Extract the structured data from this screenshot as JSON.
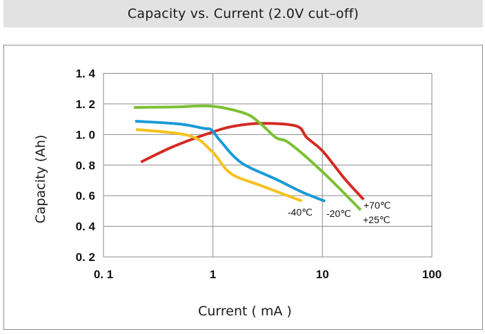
{
  "chart_data": {
    "type": "line",
    "title": "Capacity vs. Current (2.0V cut–off)",
    "xlabel": "Current ( mA )",
    "ylabel": "Capacity (Ah)",
    "xscale": "log",
    "xlim": [
      0.1,
      100
    ],
    "ylim": [
      0.2,
      1.4
    ],
    "grid": true,
    "x_ticks": [
      0.1,
      1,
      10,
      100
    ],
    "x_tick_labels": [
      "0. 1",
      "1",
      "10",
      "100"
    ],
    "y_ticks": [
      1.4,
      1.2,
      1.0,
      0.8,
      0.6,
      0.4,
      0.2
    ],
    "y_tick_labels": [
      "1. 4",
      "1. 2",
      "1. 0",
      "0. 8",
      "0. 6",
      "0. 4",
      "0. 2"
    ],
    "series": [
      {
        "name": "+70℃",
        "color": "#d42a22",
        "x": [
          0.22,
          0.43,
          0.98,
          1.57,
          2.8,
          5.8,
          7.2,
          10.1,
          16,
          23.8
        ],
        "y": [
          0.82,
          0.92,
          1.015,
          1.055,
          1.073,
          1.055,
          0.98,
          0.89,
          0.71,
          0.575
        ]
      },
      {
        "name": "+25℃",
        "color": "#7cc034",
        "x": [
          0.19,
          0.43,
          0.98,
          1.98,
          2.73,
          3.76,
          5.0,
          10.1,
          22.4
        ],
        "y": [
          1.177,
          1.18,
          1.185,
          1.137,
          1.07,
          0.98,
          0.943,
          0.754,
          0.506
        ]
      },
      {
        "name": "-20℃",
        "color": "#1a9ad8",
        "x": [
          0.195,
          0.49,
          0.82,
          0.97,
          1.18,
          1.82,
          3.76,
          6.6,
          10.6
        ],
        "y": [
          1.087,
          1.069,
          1.04,
          1.03,
          0.955,
          0.815,
          0.708,
          0.622,
          0.564
        ]
      },
      {
        "name": "-40℃",
        "color": "#f4c21c",
        "x": [
          0.198,
          0.61,
          0.98,
          1.46,
          2.8,
          6.5
        ],
        "y": [
          1.033,
          0.992,
          0.889,
          0.745,
          0.664,
          0.565
        ]
      }
    ],
    "annotations": [
      "-40℃",
      "-20℃",
      "+70℃",
      "+25℃"
    ]
  },
  "colors": {
    "title_bar": "#e2e2e2",
    "grid": "#8a8a8a"
  }
}
